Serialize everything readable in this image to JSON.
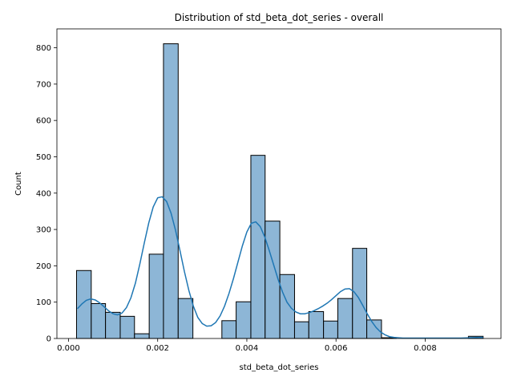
{
  "chart_data": {
    "type": "bar",
    "subtype": "histogram-with-kde",
    "title": "Distribution of std_beta_dot_series - overall",
    "xlabel": "std_beta_dot_series",
    "ylabel": "Count",
    "xlim": [
      -0.00026,
      0.0097
    ],
    "ylim": [
      0,
      852
    ],
    "grid": false,
    "legend": "none",
    "colors": {
      "bar_fill": "#8db6d6",
      "bar_edge": "#000000",
      "kde_line": "#1f77b4"
    },
    "x_ticks": [
      {
        "value": 0.0,
        "label": "0.000"
      },
      {
        "value": 0.002,
        "label": "0.002"
      },
      {
        "value": 0.004,
        "label": "0.004"
      },
      {
        "value": 0.006,
        "label": "0.006"
      },
      {
        "value": 0.008,
        "label": "0.008"
      }
    ],
    "y_ticks": [
      {
        "value": 0,
        "label": "0"
      },
      {
        "value": 100,
        "label": "100"
      },
      {
        "value": 200,
        "label": "200"
      },
      {
        "value": 300,
        "label": "300"
      },
      {
        "value": 400,
        "label": "400"
      },
      {
        "value": 500,
        "label": "500"
      },
      {
        "value": 600,
        "label": "600"
      },
      {
        "value": 700,
        "label": "700"
      },
      {
        "value": 800,
        "label": "800"
      }
    ],
    "bins": [
      {
        "x0": 0.00018,
        "x1": 0.00051,
        "count": 187
      },
      {
        "x0": 0.00051,
        "x1": 0.00083,
        "count": 96
      },
      {
        "x0": 0.00083,
        "x1": 0.00116,
        "count": 72
      },
      {
        "x0": 0.00116,
        "x1": 0.00148,
        "count": 61
      },
      {
        "x0": 0.00148,
        "x1": 0.00181,
        "count": 13
      },
      {
        "x0": 0.00181,
        "x1": 0.00213,
        "count": 232
      },
      {
        "x0": 0.00213,
        "x1": 0.00246,
        "count": 811
      },
      {
        "x0": 0.00246,
        "x1": 0.00279,
        "count": 110
      },
      {
        "x0": 0.00279,
        "x1": 0.00311,
        "count": 0
      },
      {
        "x0": 0.00311,
        "x1": 0.00344,
        "count": 0
      },
      {
        "x0": 0.00344,
        "x1": 0.00376,
        "count": 49
      },
      {
        "x0": 0.00376,
        "x1": 0.00409,
        "count": 101
      },
      {
        "x0": 0.00409,
        "x1": 0.00441,
        "count": 504
      },
      {
        "x0": 0.00441,
        "x1": 0.00474,
        "count": 323
      },
      {
        "x0": 0.00474,
        "x1": 0.00507,
        "count": 176
      },
      {
        "x0": 0.00507,
        "x1": 0.00539,
        "count": 46
      },
      {
        "x0": 0.00539,
        "x1": 0.00572,
        "count": 74
      },
      {
        "x0": 0.00572,
        "x1": 0.00604,
        "count": 48
      },
      {
        "x0": 0.00604,
        "x1": 0.00637,
        "count": 110
      },
      {
        "x0": 0.00637,
        "x1": 0.00669,
        "count": 248
      },
      {
        "x0": 0.00669,
        "x1": 0.00702,
        "count": 51
      },
      {
        "x0": 0.00702,
        "x1": 0.00735,
        "count": 2
      },
      {
        "x0": 0.00735,
        "x1": 0.00767,
        "count": 0
      },
      {
        "x0": 0.00767,
        "x1": 0.008,
        "count": 0
      },
      {
        "x0": 0.008,
        "x1": 0.00832,
        "count": 0
      },
      {
        "x0": 0.00832,
        "x1": 0.00865,
        "count": 0
      },
      {
        "x0": 0.00865,
        "x1": 0.00897,
        "count": 0
      },
      {
        "x0": 0.00897,
        "x1": 0.0093,
        "count": 6
      }
    ],
    "kde": {
      "x": [
        0.0002,
        0.0003,
        0.0004,
        0.0005,
        0.0006,
        0.0007,
        0.0008,
        0.0009,
        0.001,
        0.0011,
        0.0012,
        0.0013,
        0.0014,
        0.0015,
        0.0016,
        0.0017,
        0.0018,
        0.0019,
        0.002,
        0.0021,
        0.0022,
        0.0023,
        0.0024,
        0.0025,
        0.0026,
        0.0027,
        0.0028,
        0.0029,
        0.003,
        0.0031,
        0.0032,
        0.0033,
        0.0034,
        0.0035,
        0.0036,
        0.0037,
        0.0038,
        0.0039,
        0.004,
        0.0041,
        0.0042,
        0.0043,
        0.0044,
        0.0045,
        0.0046,
        0.0047,
        0.0048,
        0.0049,
        0.005,
        0.0051,
        0.0052,
        0.0053,
        0.0054,
        0.0055,
        0.0056,
        0.0057,
        0.0058,
        0.0059,
        0.006,
        0.0061,
        0.0062,
        0.0063,
        0.0064,
        0.0065,
        0.0066,
        0.0067,
        0.0068,
        0.0069,
        0.007,
        0.0071,
        0.0072,
        0.0073,
        0.0074,
        0.0075,
        0.0076,
        0.0078,
        0.008,
        0.0082,
        0.0084,
        0.0086,
        0.0088,
        0.009,
        0.0092,
        0.0093
      ],
      "y": [
        82,
        95,
        105,
        109,
        106,
        98,
        87,
        76,
        68,
        65,
        70,
        85,
        112,
        152,
        205,
        263,
        318,
        362,
        387,
        390,
        377,
        345,
        298,
        242,
        184,
        132,
        89,
        58,
        41,
        34,
        35,
        44,
        62,
        89,
        124,
        165,
        210,
        255,
        293,
        317,
        321,
        308,
        280,
        243,
        203,
        163,
        128,
        100,
        83,
        73,
        68,
        68,
        71,
        76,
        82,
        89,
        97,
        107,
        118,
        129,
        136,
        137,
        129,
        113,
        91,
        68,
        47,
        30,
        18,
        10,
        5,
        3,
        2,
        1,
        1,
        1,
        1,
        1,
        1,
        1,
        1,
        2,
        3,
        3
      ]
    }
  }
}
